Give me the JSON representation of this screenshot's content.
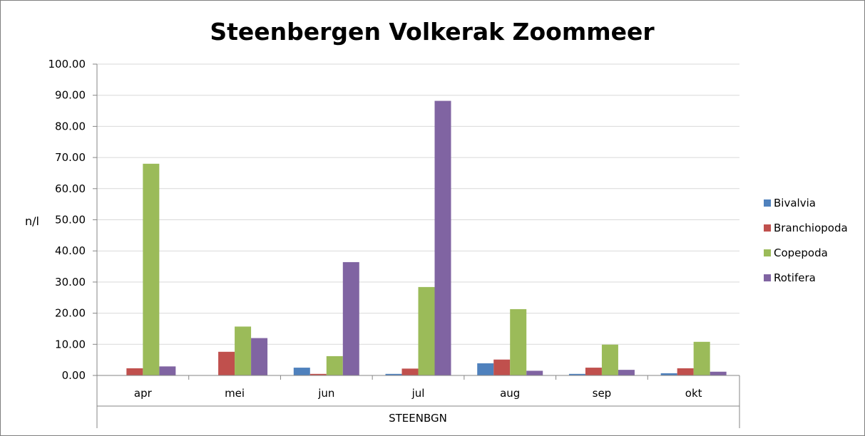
{
  "chart_data": {
    "type": "bar",
    "title": "Steenbergen Volkerak Zoommeer",
    "ylabel": "n/l",
    "xlabel": "STEENBGN",
    "categories": [
      "apr",
      "mei",
      "jun",
      "jul",
      "aug",
      "sep",
      "okt"
    ],
    "ylim": [
      0,
      100
    ],
    "yticks": [
      "0.00",
      "10.00",
      "20.00",
      "30.00",
      "40.00",
      "50.00",
      "60.00",
      "70.00",
      "80.00",
      "90.00",
      "100.00"
    ],
    "grid": true,
    "legend_position": "right",
    "series": [
      {
        "name": "Bivalvia",
        "color": "#4F81BD",
        "values": [
          0,
          0,
          2.5,
          0.5,
          3.9,
          0.5,
          0.7
        ]
      },
      {
        "name": "Branchiopoda",
        "color": "#C0504D",
        "values": [
          2.3,
          7.6,
          0.5,
          2.2,
          5.1,
          2.5,
          2.3
        ]
      },
      {
        "name": "Copepoda",
        "color": "#9BBB59",
        "values": [
          68.0,
          15.7,
          6.2,
          28.4,
          21.3,
          9.9,
          10.8
        ]
      },
      {
        "name": "Rotifera",
        "color": "#8064A2",
        "values": [
          2.9,
          12.0,
          36.4,
          88.2,
          1.5,
          1.8,
          1.2
        ]
      }
    ]
  }
}
